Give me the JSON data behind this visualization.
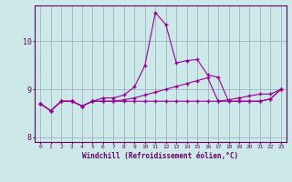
{
  "xlabel": "Windchill (Refroidissement éolien,°C)",
  "hours": [
    0,
    1,
    2,
    3,
    4,
    5,
    6,
    7,
    8,
    9,
    10,
    11,
    12,
    13,
    14,
    15,
    16,
    17,
    18,
    19,
    20,
    21,
    22,
    23
  ],
  "line1": [
    8.7,
    8.55,
    8.75,
    8.75,
    8.65,
    8.75,
    8.82,
    8.82,
    8.88,
    9.05,
    9.5,
    10.6,
    10.35,
    9.55,
    9.6,
    9.62,
    9.3,
    9.25,
    8.75,
    8.75,
    8.75,
    8.75,
    8.8,
    9.0
  ],
  "line2": [
    8.7,
    8.55,
    8.75,
    8.75,
    8.65,
    8.75,
    8.75,
    8.75,
    8.78,
    8.82,
    8.88,
    8.94,
    9.0,
    9.06,
    9.12,
    9.18,
    9.24,
    8.75,
    8.78,
    8.82,
    8.86,
    8.9,
    8.9,
    9.0
  ],
  "line3": [
    8.7,
    8.55,
    8.75,
    8.75,
    8.65,
    8.75,
    8.75,
    8.75,
    8.75,
    8.75,
    8.75,
    8.75,
    8.75,
    8.75,
    8.75,
    8.75,
    8.75,
    8.75,
    8.75,
    8.75,
    8.75,
    8.75,
    8.8,
    9.0
  ],
  "line_color": "#990099",
  "bg_color": "#cce8e8",
  "grid_color": "#99aabb",
  "axis_color": "#660066",
  "ylim": [
    7.9,
    10.75
  ],
  "yticks": [
    8,
    9,
    10
  ],
  "marker": "+"
}
